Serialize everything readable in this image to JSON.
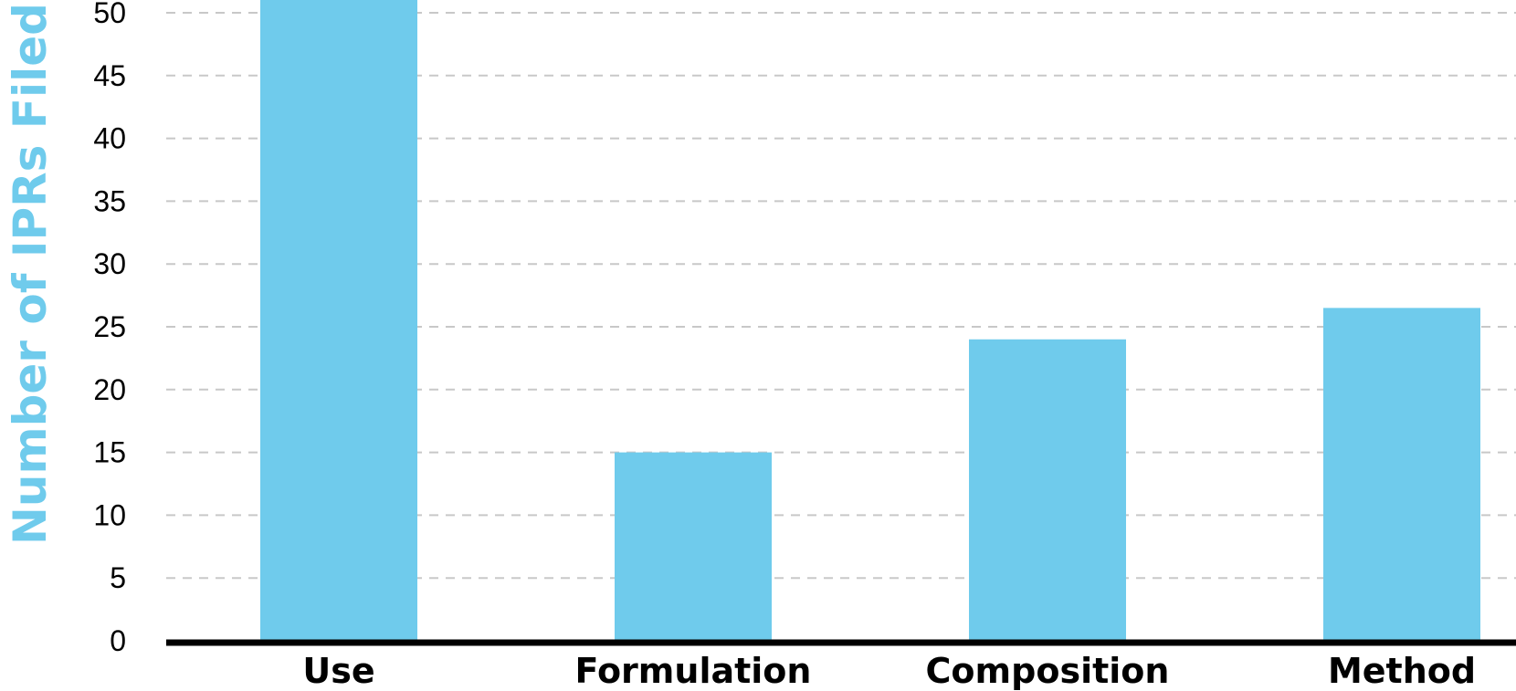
{
  "chart_data": {
    "type": "bar",
    "title": "",
    "xlabel": "",
    "ylabel": "Number of IPRs Filed",
    "categories": [
      "Use",
      "Formulation",
      "Composition",
      "Method"
    ],
    "values": [
      52,
      15,
      24,
      26.5
    ],
    "ylim": [
      0,
      50
    ],
    "yticks": [
      0,
      5,
      10,
      15,
      20,
      25,
      30,
      35,
      40,
      45,
      50
    ],
    "grid": true,
    "bar_color": "#6fcbec",
    "ylabel_color": "#6fcbec",
    "grid_color": "#c8c8c8",
    "axis_color": "#000000"
  }
}
